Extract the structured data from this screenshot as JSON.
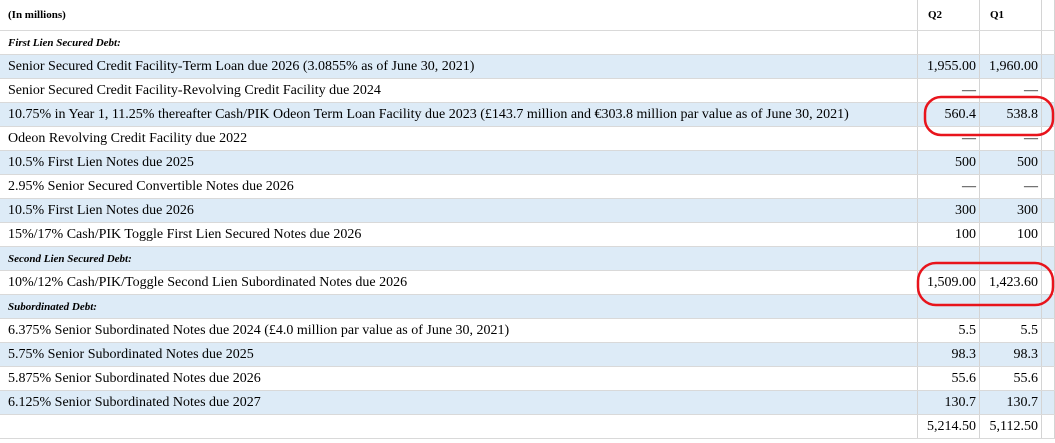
{
  "header": {
    "label": "(In millions)",
    "columns": [
      "Q2",
      "Q1"
    ]
  },
  "rows": [
    {
      "label": "First Lien Secured Debt:"
    },
    {
      "label": "Senior Secured Credit Facility-Term Loan due 2026 (3.0855% as of June 30, 2021)",
      "q2": "1,955.00",
      "q1": "1,960.00"
    },
    {
      "label": "Senior Secured Credit Facility-Revolving Credit Facility due 2024",
      "q2": "—",
      "q1": "—"
    },
    {
      "label": "10.75% in Year 1, 11.25% thereafter Cash/PIK Odeon Term Loan Facility due 2023 (£143.7 million and €303.8 million par value as of June 30, 2021)",
      "q2": "560.4",
      "q1": "538.8"
    },
    {
      "label": "Odeon Revolving Credit Facility due 2022",
      "q2": "—",
      "q1": "—"
    },
    {
      "label": "10.5% First Lien Notes due 2025",
      "q2": "500",
      "q1": "500"
    },
    {
      "label": "2.95% Senior Secured Convertible Notes due 2026",
      "q2": "—",
      "q1": "—"
    },
    {
      "label": "10.5% First Lien Notes due 2026",
      "q2": "300",
      "q1": "300"
    },
    {
      "label": "15%/17% Cash/PIK Toggle First Lien Secured Notes due 2026",
      "q2": "100",
      "q1": "100"
    },
    {
      "label": "Second Lien Secured Debt:"
    },
    {
      "label": "10%/12% Cash/PIK/Toggle Second Lien Subordinated Notes due 2026",
      "q2": "1,509.00",
      "q1": "1,423.60"
    },
    {
      "label": "Subordinated Debt:"
    },
    {
      "label": "6.375% Senior Subordinated Notes due 2024 (£4.0 million par value as of June 30, 2021)",
      "q2": "5.5",
      "q1": "5.5"
    },
    {
      "label": "5.75% Senior Subordinated Notes due 2025",
      "q2": "98.3",
      "q1": "98.3"
    },
    {
      "label": "5.875% Senior Subordinated Notes due 2026",
      "q2": "55.6",
      "q1": "55.6"
    },
    {
      "label": "6.125% Senior Subordinated Notes due 2027",
      "q2": "130.7",
      "q1": "130.7"
    },
    {
      "q2": "5,214.50",
      "q1": "5,112.50"
    }
  ]
}
